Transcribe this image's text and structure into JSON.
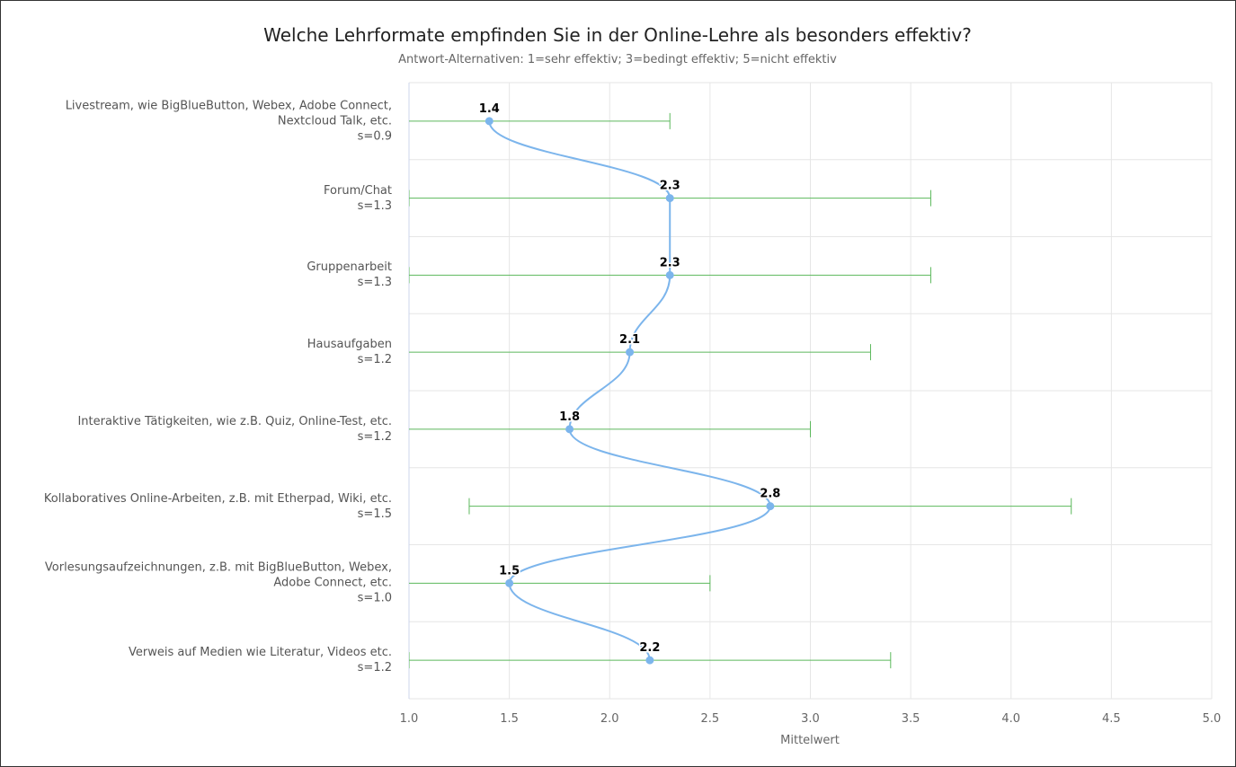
{
  "chart_data": {
    "type": "line",
    "title": "Welche Lehrformate empfinden Sie in der Online-Lehre als besonders effektiv?",
    "subtitle": "Antwort-Alternativen: 1=sehr effektiv; 3=bedingt effektiv; 5=nicht effektiv",
    "x_axis_label": "Mittelwert",
    "categories": [
      "Livestream, wie BigBlueButton, Webex, Adobe Connect, Nextcloud Talk, etc.",
      "Forum/Chat",
      "Gruppenarbeit",
      "Hausaufgaben",
      "Interaktive Tätigkeiten, wie z.B. Quiz, Online-Test, etc.",
      "Kollaboratives Online-Arbeiten, z.B. mit Etherpad, Wiki, etc.",
      "Vorlesungsaufzeichnungen, z.B. mit BigBlueButton, Webex, Adobe Connect, etc.",
      "Verweis auf Medien wie Literatur, Videos etc."
    ],
    "values": [
      1.4,
      2.3,
      2.3,
      2.1,
      1.8,
      2.8,
      1.5,
      2.2
    ],
    "errors": [
      0.9,
      1.3,
      1.3,
      1.2,
      1.2,
      1.5,
      1.0,
      1.2
    ],
    "error_labels": [
      "s=0.9",
      "s=1.3",
      "s=1.3",
      "s=1.2",
      "s=1.2",
      "s=1.5",
      "s=1.0",
      "s=1.2"
    ],
    "color": "#7cb5ec",
    "error_color": "#5cb85c",
    "xlim": [
      1,
      5
    ],
    "xticks": [
      {
        "value": 1,
        "label": "1.0"
      },
      1.5,
      {
        "value": 2,
        "label": "2.0"
      },
      2.5,
      {
        "value": 3,
        "label": "3.0"
      },
      3.5,
      {
        "value": 4,
        "label": "4.0"
      },
      4.5,
      {
        "value": 5,
        "label": "5.0"
      }
    ],
    "grid": true
  }
}
